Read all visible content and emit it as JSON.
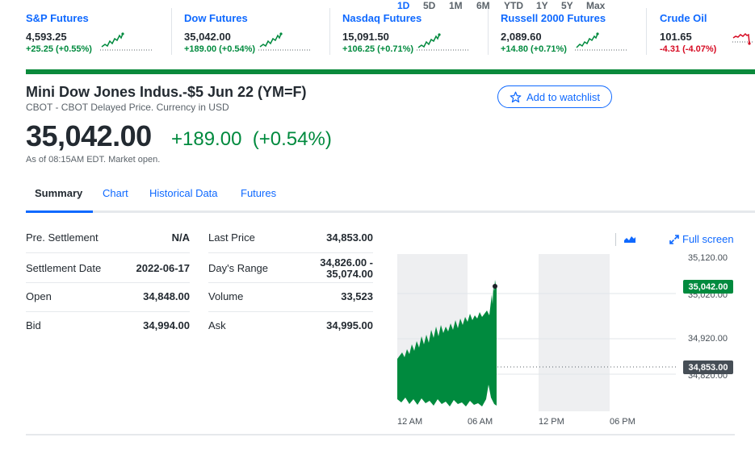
{
  "ticker": [
    {
      "name": "S&P Futures",
      "price": "4,593.25",
      "change": "+25.25 (+0.55%)",
      "direction": "up"
    },
    {
      "name": "Dow Futures",
      "price": "35,042.00",
      "change": "+189.00 (+0.54%)",
      "direction": "up"
    },
    {
      "name": "Nasdaq Futures",
      "price": "15,091.50",
      "change": "+106.25 (+0.71%)",
      "direction": "up"
    },
    {
      "name": "Russell 2000 Futures",
      "price": "2,089.60",
      "change": "+14.80 (+0.71%)",
      "direction": "up"
    },
    {
      "name": "Crude Oil",
      "price": "101.65",
      "change": "-4.31 (-4.07%)",
      "direction": "down"
    }
  ],
  "quote": {
    "title": "Mini Dow Jones Indus.-$5 Jun 22 (YM=F)",
    "subtitle": "CBOT - CBOT Delayed Price. Currency in USD",
    "watchlist_label": "Add to watchlist",
    "price": "35,042.00",
    "change": "+189.00",
    "change_pct": "(+0.54%)",
    "as_of": "As of 08:15AM EDT. Market open."
  },
  "tabs": [
    "Summary",
    "Chart",
    "Historical Data",
    "Futures"
  ],
  "summary": {
    "left": [
      {
        "label": "Pre. Settlement",
        "value": "N/A"
      },
      {
        "label": "Settlement Date",
        "value": "2022-06-17"
      },
      {
        "label": "Open",
        "value": "34,848.00"
      },
      {
        "label": "Bid",
        "value": "34,994.00"
      }
    ],
    "right": [
      {
        "label": "Last Price",
        "value": "34,853.00"
      },
      {
        "label": "Day's Range",
        "value_line1": "34,826.00 -",
        "value_line2": "35,074.00"
      },
      {
        "label": "Volume",
        "value": "33,523"
      },
      {
        "label": "Ask",
        "value": "34,995.00"
      }
    ]
  },
  "chart": {
    "ranges": [
      "1D",
      "5D",
      "1M",
      "6M",
      "YTD",
      "1Y",
      "5Y",
      "Max"
    ],
    "active_range": "1D",
    "chart_type_icon": "mountain-chart-icon",
    "fullscreen_label": "Full screen",
    "y_ticks": [
      "35,120.00",
      "35,020.00",
      "34,920.00",
      "34,820.00"
    ],
    "x_ticks": [
      "12 AM",
      "06 AM",
      "12 PM",
      "06 PM"
    ],
    "current_tag": "35,042.00",
    "prev_close_tag": "34,853.00",
    "colors": {
      "up": "#008a3e",
      "down": "#d60a22",
      "accent": "#0f69ff",
      "tag_dark": "#464e56"
    }
  }
}
